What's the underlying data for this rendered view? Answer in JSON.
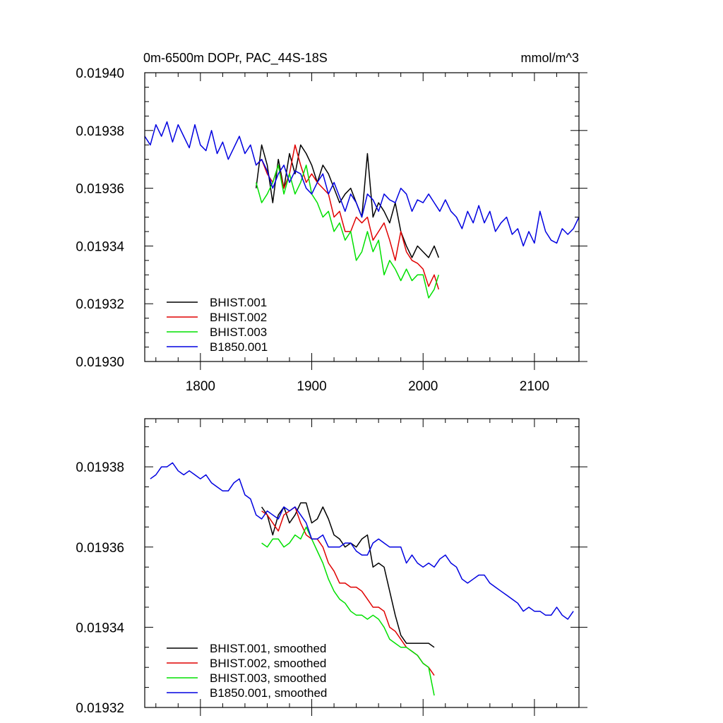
{
  "chart_data": [
    {
      "type": "line",
      "title": "0m-6500m DOPr, PAC_44S-18S",
      "units": "mmol/m^3",
      "xlim": [
        1750,
        2140
      ],
      "ylim": [
        0.0193,
        0.0194
      ],
      "xticks": [
        1800,
        1900,
        2000,
        2100
      ],
      "xtick_labels": [
        "1800",
        "1900",
        "2000",
        "2100"
      ],
      "yticks": [
        0.0193,
        0.01932,
        0.01934,
        0.01936,
        0.01938,
        0.0194
      ],
      "ytick_labels": [
        "0.01930",
        "0.01932",
        "0.01934",
        "0.01936",
        "0.01938",
        "0.01940"
      ],
      "legend_position": "bottom-left",
      "series": [
        {
          "name": "BHIST.001",
          "color": "#000000",
          "x": [
            1850,
            1855,
            1860,
            1865,
            1870,
            1875,
            1880,
            1885,
            1890,
            1895,
            1900,
            1905,
            1910,
            1915,
            1920,
            1925,
            1930,
            1935,
            1940,
            1945,
            1950,
            1955,
            1960,
            1965,
            1970,
            1975,
            1980,
            1985,
            1990,
            1995,
            2000,
            2005,
            2010,
            2014
          ],
          "y": [
            0.01936,
            0.019375,
            0.019368,
            0.019355,
            0.01937,
            0.01936,
            0.019372,
            0.019365,
            0.019375,
            0.019372,
            0.019368,
            0.019362,
            0.019368,
            0.019365,
            0.01936,
            0.019355,
            0.019358,
            0.01936,
            0.019355,
            0.01935,
            0.019372,
            0.01935,
            0.019355,
            0.019352,
            0.019348,
            0.019355,
            0.019345,
            0.01934,
            0.019336,
            0.01934,
            0.019338,
            0.019336,
            0.01934,
            0.019336
          ]
        },
        {
          "name": "BHIST.002",
          "color": "#e00000",
          "x": [
            1850,
            1855,
            1860,
            1865,
            1870,
            1875,
            1880,
            1885,
            1890,
            1895,
            1900,
            1905,
            1910,
            1915,
            1920,
            1925,
            1930,
            1935,
            1940,
            1945,
            1950,
            1955,
            1960,
            1965,
            1970,
            1975,
            1980,
            1985,
            1990,
            1995,
            2000,
            2005,
            2010,
            2014
          ],
          "y": [
            0.019368,
            0.01937,
            0.019365,
            0.019362,
            0.019368,
            0.01936,
            0.019365,
            0.019375,
            0.019368,
            0.019362,
            0.019365,
            0.019362,
            0.01936,
            0.019358,
            0.01935,
            0.019352,
            0.019345,
            0.019345,
            0.01935,
            0.019348,
            0.01935,
            0.019342,
            0.019345,
            0.019348,
            0.019342,
            0.019335,
            0.019345,
            0.019338,
            0.019335,
            0.019334,
            0.019332,
            0.019326,
            0.01933,
            0.019325
          ]
        },
        {
          "name": "BHIST.003",
          "color": "#00e000",
          "x": [
            1850,
            1855,
            1860,
            1865,
            1870,
            1875,
            1880,
            1885,
            1890,
            1895,
            1900,
            1905,
            1910,
            1915,
            1920,
            1925,
            1930,
            1935,
            1940,
            1945,
            1950,
            1955,
            1960,
            1965,
            1970,
            1975,
            1980,
            1985,
            1990,
            1995,
            2000,
            2005,
            2010,
            2014
          ],
          "y": [
            0.019362,
            0.019355,
            0.019358,
            0.019362,
            0.019368,
            0.019358,
            0.019365,
            0.019358,
            0.019362,
            0.019368,
            0.019358,
            0.019355,
            0.01935,
            0.019352,
            0.019345,
            0.019348,
            0.019342,
            0.019345,
            0.019335,
            0.019338,
            0.019345,
            0.019338,
            0.019342,
            0.01933,
            0.019335,
            0.019332,
            0.019328,
            0.019332,
            0.019328,
            0.01933,
            0.01933,
            0.019322,
            0.019325,
            0.01933
          ]
        },
        {
          "name": "B1850.001",
          "color": "#0000e0",
          "x": [
            1750,
            1755,
            1760,
            1765,
            1770,
            1775,
            1780,
            1785,
            1790,
            1795,
            1800,
            1805,
            1810,
            1815,
            1820,
            1825,
            1830,
            1835,
            1840,
            1845,
            1850,
            1855,
            1860,
            1865,
            1870,
            1875,
            1880,
            1885,
            1890,
            1895,
            1900,
            1905,
            1910,
            1915,
            1920,
            1925,
            1930,
            1935,
            1940,
            1945,
            1950,
            1955,
            1960,
            1965,
            1970,
            1975,
            1980,
            1985,
            1990,
            1995,
            2000,
            2005,
            2010,
            2015,
            2020,
            2025,
            2030,
            2035,
            2040,
            2045,
            2050,
            2055,
            2060,
            2065,
            2070,
            2075,
            2080,
            2085,
            2090,
            2095,
            2100,
            2105,
            2110,
            2115,
            2120,
            2125,
            2130,
            2135,
            2140
          ],
          "y": [
            0.019378,
            0.019375,
            0.019382,
            0.019378,
            0.019383,
            0.019376,
            0.019382,
            0.019378,
            0.019374,
            0.019382,
            0.019375,
            0.019373,
            0.01938,
            0.019372,
            0.019376,
            0.01937,
            0.019374,
            0.019378,
            0.019372,
            0.019375,
            0.019368,
            0.01937,
            0.019366,
            0.01936,
            0.019365,
            0.019368,
            0.019362,
            0.019366,
            0.019365,
            0.01936,
            0.019358,
            0.019362,
            0.019365,
            0.019358,
            0.019362,
            0.019357,
            0.019352,
            0.019358,
            0.019355,
            0.01935,
            0.019358,
            0.019356,
            0.019352,
            0.019358,
            0.019356,
            0.019355,
            0.01936,
            0.019358,
            0.019352,
            0.019356,
            0.019355,
            0.019358,
            0.019355,
            0.019352,
            0.019356,
            0.019352,
            0.01935,
            0.019346,
            0.019352,
            0.019348,
            0.019354,
            0.019348,
            0.019352,
            0.019345,
            0.019348,
            0.01935,
            0.019344,
            0.019346,
            0.01934,
            0.019345,
            0.019341,
            0.019352,
            0.019345,
            0.019342,
            0.019341,
            0.019346,
            0.019344,
            0.019346,
            0.01935
          ]
        }
      ]
    },
    {
      "type": "line",
      "title": "",
      "xlim": [
        1750,
        2140
      ],
      "ylim": [
        0.01932,
        0.019392
      ],
      "xticks": [
        1800,
        1900,
        2000,
        2100
      ],
      "xtick_labels": [],
      "yticks": [
        0.01932,
        0.01934,
        0.01936,
        0.01938
      ],
      "ytick_labels": [
        "0.01932",
        "0.01934",
        "0.01936",
        "0.01938"
      ],
      "legend_position": "bottom-left",
      "series": [
        {
          "name": "BHIST.001, smoothed",
          "color": "#000000",
          "x": [
            1855,
            1860,
            1865,
            1870,
            1875,
            1880,
            1885,
            1890,
            1895,
            1900,
            1905,
            1910,
            1915,
            1920,
            1925,
            1930,
            1935,
            1940,
            1945,
            1950,
            1955,
            1960,
            1965,
            1970,
            1975,
            1980,
            1985,
            1990,
            1995,
            2000,
            2005,
            2010
          ],
          "y": [
            0.01937,
            0.019368,
            0.019363,
            0.019368,
            0.01937,
            0.019366,
            0.019368,
            0.019371,
            0.019371,
            0.019366,
            0.019367,
            0.01937,
            0.019367,
            0.019363,
            0.019362,
            0.01936,
            0.019361,
            0.01936,
            0.019362,
            0.019363,
            0.019355,
            0.019356,
            0.019355,
            0.019349,
            0.019343,
            0.019338,
            0.019336,
            0.019336,
            0.019336,
            0.019336,
            0.019336,
            0.019335
          ]
        },
        {
          "name": "BHIST.002, smoothed",
          "color": "#e00000",
          "x": [
            1855,
            1860,
            1865,
            1870,
            1875,
            1880,
            1885,
            1890,
            1895,
            1900,
            1905,
            1910,
            1915,
            1920,
            1925,
            1930,
            1935,
            1940,
            1945,
            1950,
            1955,
            1960,
            1965,
            1970,
            1975,
            1980,
            1985,
            1990,
            1995,
            2000,
            2005,
            2010
          ],
          "y": [
            0.019369,
            0.019368,
            0.019366,
            0.019364,
            0.019368,
            0.019369,
            0.01937,
            0.019366,
            0.019363,
            0.019362,
            0.019362,
            0.01936,
            0.019356,
            0.019354,
            0.019351,
            0.019351,
            0.01935,
            0.01935,
            0.019349,
            0.019347,
            0.019345,
            0.019345,
            0.019344,
            0.01934,
            0.019339,
            0.019337,
            0.019335,
            0.019334,
            0.019333,
            0.019331,
            0.01933,
            0.019328
          ]
        },
        {
          "name": "BHIST.003, smoothed",
          "color": "#00e000",
          "x": [
            1855,
            1860,
            1865,
            1870,
            1875,
            1880,
            1885,
            1890,
            1895,
            1900,
            1905,
            1910,
            1915,
            1920,
            1925,
            1930,
            1935,
            1940,
            1945,
            1950,
            1955,
            1960,
            1965,
            1970,
            1975,
            1980,
            1985,
            1990,
            1995,
            2000,
            2005,
            2010
          ],
          "y": [
            0.019361,
            0.01936,
            0.019362,
            0.019362,
            0.01936,
            0.019361,
            0.019363,
            0.019362,
            0.019365,
            0.019362,
            0.019359,
            0.019356,
            0.019352,
            0.019349,
            0.019347,
            0.019346,
            0.019344,
            0.019343,
            0.019343,
            0.019342,
            0.019343,
            0.019342,
            0.01934,
            0.019337,
            0.019336,
            0.019335,
            0.019335,
            0.019334,
            0.019333,
            0.019331,
            0.01933,
            0.019323
          ]
        },
        {
          "name": "B1850.001, smoothed",
          "color": "#0000e0",
          "x": [
            1755,
            1760,
            1765,
            1770,
            1775,
            1780,
            1785,
            1790,
            1795,
            1800,
            1805,
            1810,
            1815,
            1820,
            1825,
            1830,
            1835,
            1840,
            1845,
            1850,
            1855,
            1860,
            1865,
            1870,
            1875,
            1880,
            1885,
            1890,
            1895,
            1900,
            1905,
            1910,
            1915,
            1920,
            1925,
            1930,
            1935,
            1940,
            1945,
            1950,
            1955,
            1960,
            1965,
            1970,
            1975,
            1980,
            1985,
            1990,
            1995,
            2000,
            2005,
            2010,
            2015,
            2020,
            2025,
            2030,
            2035,
            2040,
            2045,
            2050,
            2055,
            2060,
            2065,
            2070,
            2075,
            2080,
            2085,
            2090,
            2095,
            2100,
            2105,
            2110,
            2115,
            2120,
            2125,
            2130,
            2135
          ],
          "y": [
            0.019377,
            0.019378,
            0.01938,
            0.01938,
            0.019381,
            0.019379,
            0.019378,
            0.019379,
            0.019378,
            0.019377,
            0.019378,
            0.019376,
            0.019375,
            0.019374,
            0.019374,
            0.019376,
            0.019377,
            0.019373,
            0.019372,
            0.019368,
            0.019367,
            0.019369,
            0.019368,
            0.019367,
            0.01937,
            0.019369,
            0.01937,
            0.019368,
            0.019366,
            0.019362,
            0.019362,
            0.019363,
            0.01936,
            0.01936,
            0.01936,
            0.019361,
            0.019361,
            0.019359,
            0.019358,
            0.019358,
            0.019361,
            0.019362,
            0.019361,
            0.01936,
            0.01936,
            0.01936,
            0.019356,
            0.019358,
            0.019356,
            0.019355,
            0.019356,
            0.019355,
            0.019357,
            0.019358,
            0.019356,
            0.019355,
            0.019352,
            0.019351,
            0.019352,
            0.019353,
            0.019353,
            0.019351,
            0.01935,
            0.019349,
            0.019348,
            0.019347,
            0.019346,
            0.019344,
            0.019345,
            0.019344,
            0.019344,
            0.019343,
            0.019343,
            0.019345,
            0.019343,
            0.019342,
            0.019344
          ]
        }
      ]
    }
  ]
}
